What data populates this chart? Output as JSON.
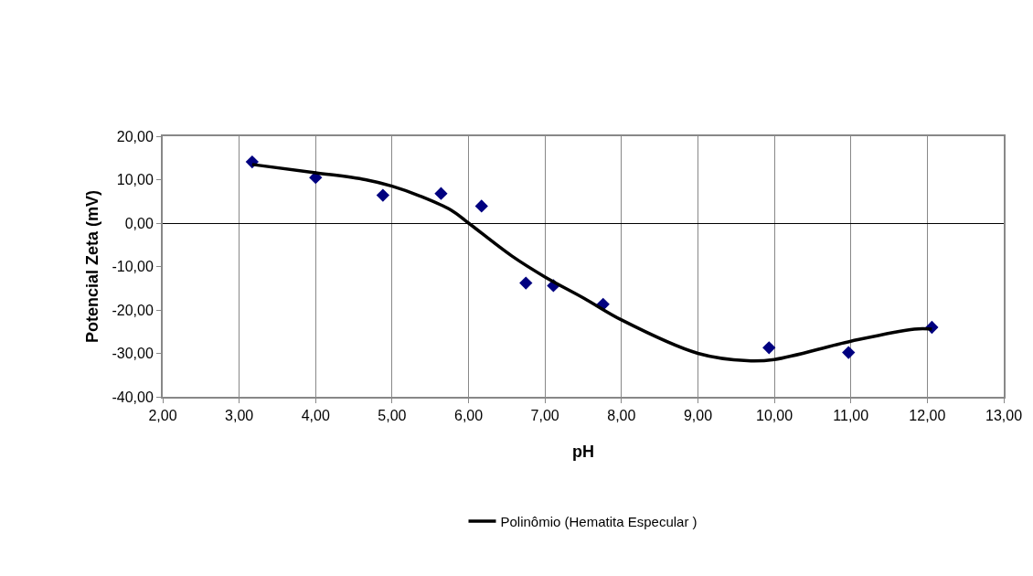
{
  "chart_data": {
    "type": "scatter",
    "xlabel": "pH",
    "ylabel": "Potencial Zeta (mV)",
    "xlim": [
      2,
      13
    ],
    "ylim": [
      -40,
      20
    ],
    "xticks": [
      {
        "value": 2,
        "label": "2,00"
      },
      {
        "value": 3,
        "label": "3,00"
      },
      {
        "value": 4,
        "label": "4,00"
      },
      {
        "value": 5,
        "label": "5,00"
      },
      {
        "value": 6,
        "label": "6,00"
      },
      {
        "value": 7,
        "label": "7,00"
      },
      {
        "value": 8,
        "label": "8,00"
      },
      {
        "value": 9,
        "label": "9,00"
      },
      {
        "value": 10,
        "label": "10,00"
      },
      {
        "value": 11,
        "label": "11,00"
      },
      {
        "value": 12,
        "label": "12,00"
      },
      {
        "value": 13,
        "label": "13,00"
      }
    ],
    "yticks": [
      {
        "value": -40,
        "label": "-40,00"
      },
      {
        "value": -30,
        "label": "-30,00"
      },
      {
        "value": -20,
        "label": "-20,00"
      },
      {
        "value": -10,
        "label": "-10,00"
      },
      {
        "value": 0,
        "label": "0,00"
      },
      {
        "value": 10,
        "label": "10,00"
      },
      {
        "value": 20,
        "label": "20,00"
      }
    ],
    "grid": "x",
    "legend": "bottom",
    "series": [
      {
        "color": "#000080",
        "marker": "diamond",
        "x": [
          3.17,
          4.0,
          4.88,
          5.64,
          6.17,
          6.75,
          7.11,
          7.76,
          9.93,
          10.97,
          12.06
        ],
        "values": [
          14.1,
          10.5,
          6.4,
          6.8,
          3.9,
          -13.8,
          -14.4,
          -18.7,
          -28.7,
          -29.8,
          -24.0
        ]
      },
      {
        "type": "line",
        "name": "Polinômio (Hematita Especular )",
        "color": "#000000",
        "marker": "none",
        "line_style": "solid",
        "x": [
          3.17,
          4.0,
          4.65,
          5.0,
          5.37,
          5.77,
          6.0,
          6.56,
          7.0,
          7.51,
          8.0,
          9.0,
          9.65,
          10.0,
          11.0,
          11.83,
          12.06
        ],
        "values": [
          13.5,
          11.6,
          10.0,
          8.5,
          6.2,
          3.0,
          0.0,
          -7.5,
          -12.4,
          -17.3,
          -22.3,
          -30.0,
          -31.7,
          -31.4,
          -27.2,
          -24.4,
          -24.4
        ]
      }
    ]
  }
}
